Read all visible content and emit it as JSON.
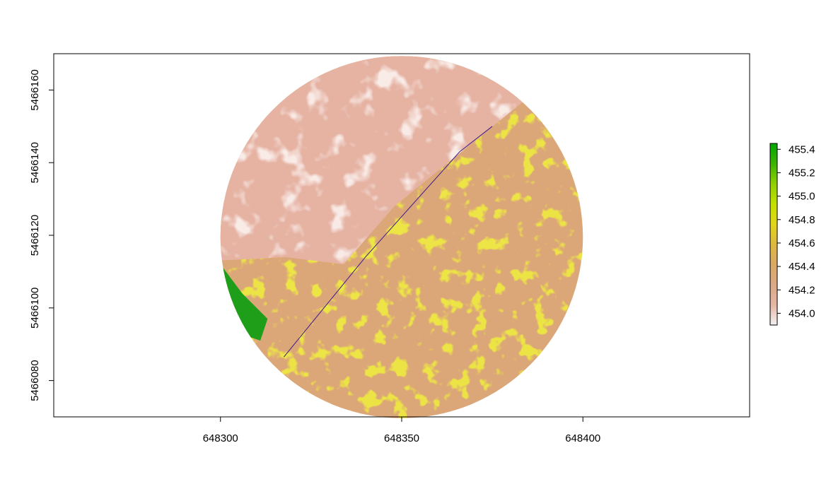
{
  "chart_data": {
    "type": "heatmap",
    "title": "",
    "xlabel": "",
    "ylabel": "",
    "x_ticks": [
      "648300",
      "648350",
      "648400"
    ],
    "y_ticks": [
      "5466080",
      "5466100",
      "5466120",
      "5466140",
      "5466160"
    ],
    "x_tick_values": [
      648300,
      648350,
      648400
    ],
    "y_tick_values": [
      5466080,
      5466100,
      5466120,
      5466140,
      5466160
    ],
    "xlim": [
      648254,
      648446
    ],
    "ylim": [
      5466070,
      5466170
    ],
    "raster_extent": {
      "center": [
        648350,
        5466119.5
      ],
      "radius": 50
    },
    "line": {
      "color": "#3b1a8a",
      "points": [
        [
          648317.5,
          5466086.5
        ],
        [
          648340,
          5466114
        ],
        [
          648366,
          5466143
        ],
        [
          648375,
          5466150
        ]
      ]
    },
    "legend": {
      "position": "right",
      "min": 453.9,
      "max": 455.45,
      "labels": [
        "455.4",
        "455.2",
        "455.0",
        "454.8",
        "454.6",
        "454.4",
        "454.2",
        "454.0"
      ],
      "values": [
        455.4,
        455.2,
        455.0,
        454.8,
        454.6,
        454.4,
        454.2,
        454.0
      ],
      "colors": [
        "#f2f2f2",
        "#e4b6a5",
        "#dba986",
        "#d9a964",
        "#ddb93e",
        "#e0d61a",
        "#c4e000",
        "#8fd100",
        "#3cb300",
        "#00a600"
      ]
    },
    "grid": false
  }
}
